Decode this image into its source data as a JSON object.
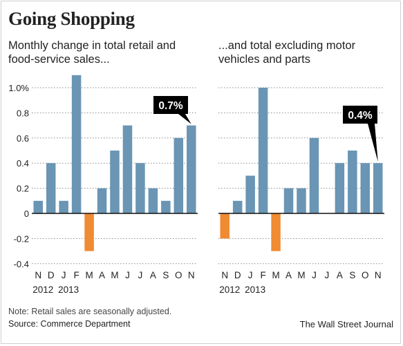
{
  "header": {
    "title": "Going Shopping"
  },
  "colors": {
    "positive": "#6a95b4",
    "negative": "#f08a33",
    "callout_bg": "#000000",
    "callout_text": "#ffffff",
    "grid": "#888888"
  },
  "footer": {
    "note": "Note: Retail sales are seasonally adjusted.",
    "source": "Source: Commerce Department",
    "brand": "The Wall Street Journal"
  },
  "chart_data": [
    {
      "type": "bar",
      "subtitle": "Monthly change in total retail and food-service sales...",
      "categories": [
        "N",
        "D",
        "J",
        "F",
        "M",
        "A",
        "M",
        "J",
        "J",
        "A",
        "S",
        "O",
        "N"
      ],
      "year_labels": [
        "2012",
        "2013"
      ],
      "values": [
        0.1,
        0.4,
        0.1,
        1.1,
        -0.3,
        0.2,
        0.5,
        0.7,
        0.4,
        0.2,
        0.1,
        0.6,
        0.7
      ],
      "yticks": [
        "1.0%",
        "0.8",
        "0.6",
        "0.4",
        "0.2",
        "0",
        "-0.2",
        "-0.4"
      ],
      "ylim": [
        -0.4,
        1.1
      ],
      "grid": true,
      "callout": "0.7%"
    },
    {
      "type": "bar",
      "subtitle": "...and total excluding motor vehicles and parts",
      "categories": [
        "N",
        "D",
        "J",
        "F",
        "M",
        "A",
        "M",
        "J",
        "J",
        "A",
        "S",
        "O",
        "N"
      ],
      "year_labels": [
        "2012",
        "2013"
      ],
      "values": [
        -0.2,
        0.1,
        0.3,
        1.0,
        -0.3,
        0.2,
        0.2,
        0.6,
        0.0,
        0.4,
        0.5,
        0.4,
        0.4
      ],
      "ylim": [
        -0.4,
        1.1
      ],
      "grid": true,
      "callout": "0.4%"
    }
  ]
}
